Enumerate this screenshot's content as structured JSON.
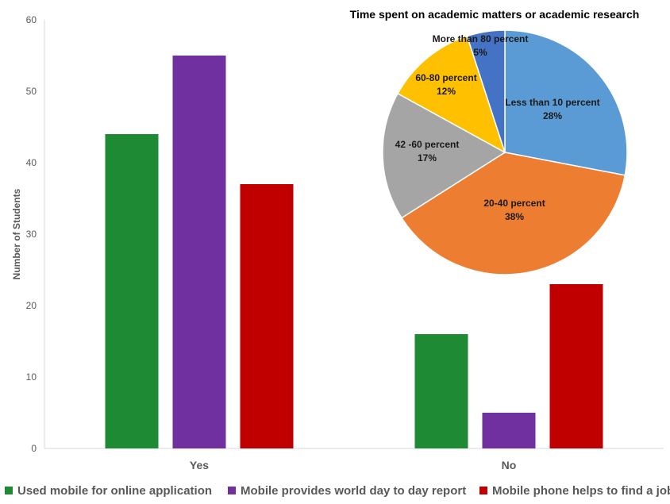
{
  "chart_data": [
    {
      "type": "bar",
      "categories": [
        "Yes",
        "No"
      ],
      "series": [
        {
          "name": "Used mobile for online application",
          "values": [
            44,
            16
          ],
          "color": "#1f8a34"
        },
        {
          "name": "Mobile provides world day to day report",
          "values": [
            55,
            5
          ],
          "color": "#7030a0"
        },
        {
          "name": "Mobile phone helps to find a job",
          "values": [
            37,
            23
          ],
          "color": "#c00000"
        }
      ],
      "ylabel": "Number of Students",
      "ylim": [
        0,
        60
      ],
      "yticks": [
        0,
        10,
        20,
        30,
        40,
        50,
        60
      ],
      "legend_position": "bottom",
      "grid": false
    },
    {
      "type": "pie",
      "title": "Time spent on academic matters or academic research",
      "slices": [
        {
          "label": "Less than 10 percent",
          "value": 28,
          "value_label": "28%",
          "color": "#5b9bd5"
        },
        {
          "label": "20-40 percent",
          "value": 38,
          "value_label": "38%",
          "color": "#ed7d31"
        },
        {
          "label": "42 -60 percent",
          "value": 17,
          "value_label": "17%",
          "color": "#a5a5a5"
        },
        {
          "label": "60-80 percent",
          "value": 12,
          "value_label": "12%",
          "color": "#ffc000"
        },
        {
          "label": "More than 80 percent",
          "value": 5,
          "value_label": "5%",
          "color": "#4472c4"
        }
      ]
    }
  ]
}
